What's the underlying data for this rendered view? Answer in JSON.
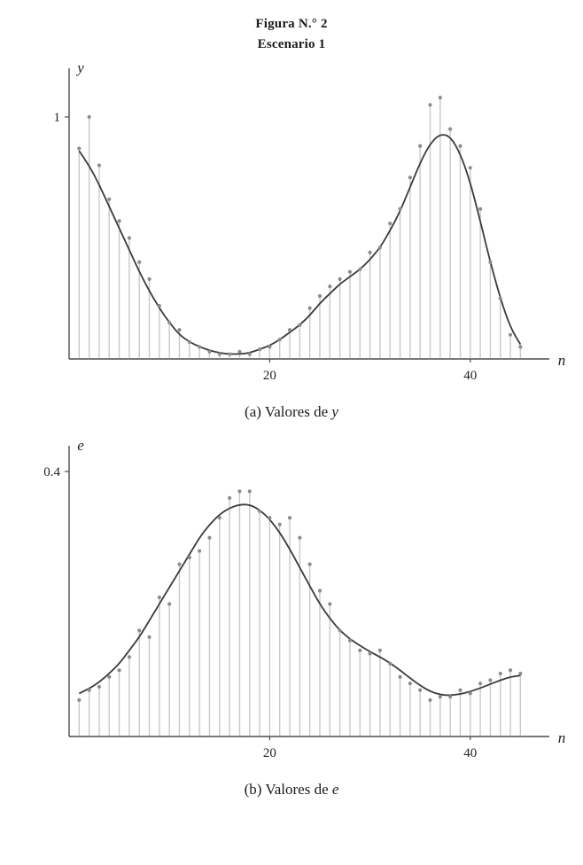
{
  "figure": {
    "title_line1": "Figura N.° 2",
    "title_line2": "Escenario 1"
  },
  "captions": {
    "a": {
      "prefix": "(a) Valores de ",
      "var": "y"
    },
    "b": {
      "prefix": "(b) Valores de ",
      "var": "e"
    }
  },
  "colors": {
    "stem": "#c9c9c9",
    "dot": "#8c8c8c",
    "curve": "#3b3b3b",
    "axis": "#4a4a4a",
    "text": "#1b1b1b"
  },
  "chart_data": [
    {
      "type": "stem+line",
      "title": "(a) Valores de y",
      "xlabel": "n",
      "ylabel": "y",
      "xlim": [
        0,
        47
      ],
      "ylim": [
        0,
        1.15
      ],
      "xticks": [
        {
          "value": 20,
          "label": "20"
        },
        {
          "value": 40,
          "label": "40"
        }
      ],
      "yticks": [
        {
          "value": 1,
          "label": "1"
        }
      ],
      "grid": false,
      "legend": "none",
      "x": [
        1,
        2,
        3,
        4,
        5,
        6,
        7,
        8,
        9,
        10,
        11,
        12,
        13,
        14,
        15,
        16,
        17,
        18,
        19,
        20,
        21,
        22,
        23,
        24,
        25,
        26,
        27,
        28,
        29,
        30,
        31,
        32,
        33,
        34,
        35,
        36,
        37,
        38,
        39,
        40,
        41,
        42,
        43,
        44,
        45
      ],
      "series": [
        {
          "name": "muestras-y",
          "style": "stem",
          "values": [
            0.87,
            1.0,
            0.8,
            0.66,
            0.57,
            0.5,
            0.4,
            0.33,
            0.22,
            0.15,
            0.12,
            0.07,
            0.05,
            0.03,
            0.02,
            0.02,
            0.03,
            0.02,
            0.04,
            0.05,
            0.08,
            0.12,
            0.14,
            0.21,
            0.26,
            0.3,
            0.33,
            0.36,
            0.37,
            0.44,
            0.46,
            0.56,
            0.62,
            0.75,
            0.88,
            1.05,
            1.08,
            0.95,
            0.88,
            0.79,
            0.62,
            0.4,
            0.25,
            0.1,
            0.05
          ]
        },
        {
          "name": "curva-ajustada-y",
          "style": "line",
          "values": [
            0.86,
            0.8,
            0.72,
            0.63,
            0.54,
            0.45,
            0.36,
            0.28,
            0.21,
            0.15,
            0.1,
            0.07,
            0.05,
            0.035,
            0.025,
            0.02,
            0.02,
            0.025,
            0.04,
            0.055,
            0.08,
            0.11,
            0.14,
            0.18,
            0.23,
            0.27,
            0.31,
            0.34,
            0.37,
            0.41,
            0.46,
            0.53,
            0.61,
            0.71,
            0.81,
            0.89,
            0.93,
            0.92,
            0.85,
            0.73,
            0.57,
            0.4,
            0.25,
            0.13,
            0.06
          ]
        }
      ]
    },
    {
      "type": "stem+line",
      "title": "(b) Valores de e",
      "xlabel": "n",
      "ylabel": "e",
      "xlim": [
        0,
        47
      ],
      "ylim": [
        0,
        0.42
      ],
      "xticks": [
        {
          "value": 20,
          "label": "20"
        },
        {
          "value": 40,
          "label": "40"
        }
      ],
      "yticks": [
        {
          "value": 0.4,
          "label": "0.4"
        }
      ],
      "grid": false,
      "legend": "none",
      "x": [
        1,
        2,
        3,
        4,
        5,
        6,
        7,
        8,
        9,
        10,
        11,
        12,
        13,
        14,
        15,
        16,
        17,
        18,
        19,
        20,
        21,
        22,
        23,
        24,
        25,
        26,
        27,
        28,
        29,
        30,
        31,
        32,
        33,
        34,
        35,
        36,
        37,
        38,
        39,
        40,
        41,
        42,
        43,
        44,
        45
      ],
      "series": [
        {
          "name": "muestras-e",
          "style": "stem",
          "values": [
            0.055,
            0.07,
            0.075,
            0.09,
            0.1,
            0.12,
            0.16,
            0.15,
            0.21,
            0.2,
            0.26,
            0.27,
            0.28,
            0.3,
            0.33,
            0.36,
            0.37,
            0.37,
            0.34,
            0.33,
            0.32,
            0.33,
            0.3,
            0.26,
            0.22,
            0.2,
            0.16,
            0.145,
            0.13,
            0.125,
            0.13,
            0.11,
            0.09,
            0.08,
            0.07,
            0.055,
            0.06,
            0.06,
            0.07,
            0.065,
            0.08,
            0.085,
            0.095,
            0.1,
            0.095
          ]
        },
        {
          "name": "curva-ajustada-e",
          "style": "line",
          "values": [
            0.065,
            0.072,
            0.082,
            0.095,
            0.11,
            0.13,
            0.15,
            0.175,
            0.2,
            0.225,
            0.25,
            0.275,
            0.3,
            0.32,
            0.335,
            0.345,
            0.35,
            0.35,
            0.342,
            0.328,
            0.308,
            0.283,
            0.255,
            0.227,
            0.2,
            0.178,
            0.16,
            0.147,
            0.137,
            0.128,
            0.12,
            0.111,
            0.1,
            0.088,
            0.077,
            0.068,
            0.063,
            0.062,
            0.064,
            0.068,
            0.073,
            0.079,
            0.085,
            0.09,
            0.092
          ]
        }
      ]
    }
  ]
}
